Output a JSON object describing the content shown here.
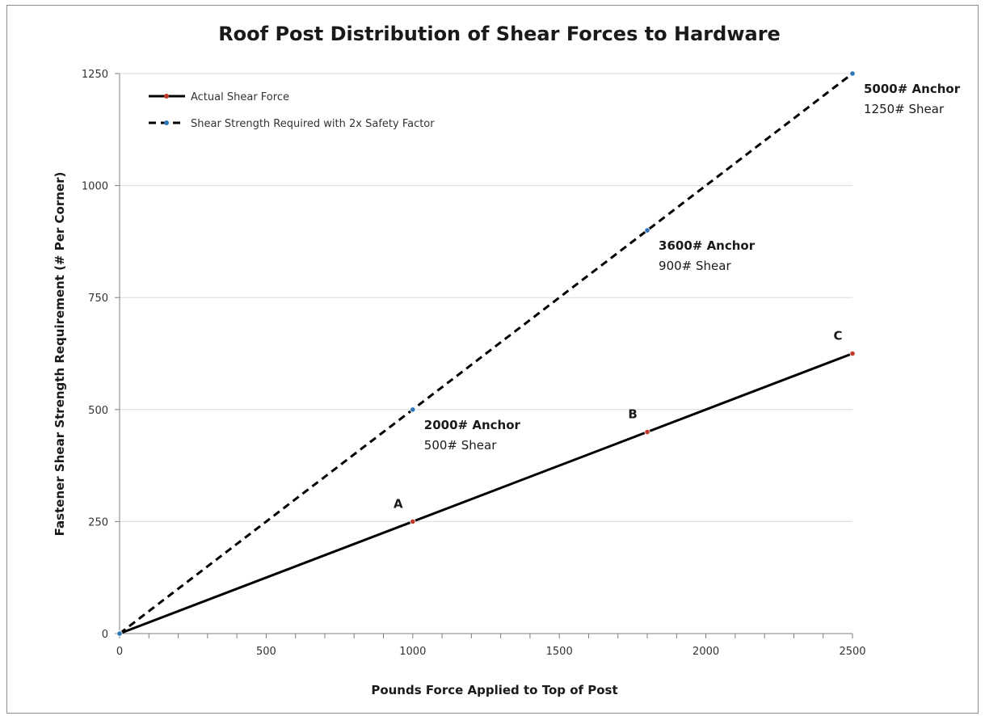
{
  "chart_data": {
    "type": "line",
    "title": "Roof Post Distribution of Shear Forces to Hardware",
    "xlabel": "Pounds Force Applied to Top of Post",
    "ylabel": "Fastener Shear Strength Requirement (# Per Corner)",
    "xlim": [
      0,
      2500
    ],
    "ylim": [
      0,
      1250
    ],
    "x_ticks": [
      "0",
      "500",
      "1000",
      "1500",
      "2000",
      "2500"
    ],
    "y_ticks": [
      "0",
      "250",
      "500",
      "750",
      "1000",
      "1250"
    ],
    "grid": "horizontal",
    "legend_position": "top-left",
    "series": [
      {
        "name": "Actual Shear Force",
        "style": "solid",
        "color": "#000000",
        "marker_color": "#c0392b",
        "points": [
          {
            "x": 0,
            "y": 0
          },
          {
            "x": 1000,
            "y": 250
          },
          {
            "x": 1800,
            "y": 450
          },
          {
            "x": 2500,
            "y": 625
          }
        ]
      },
      {
        "name": "Shear Strength Required with 2x Safety Factor",
        "style": "dashed",
        "color": "#000000",
        "marker_color": "#2e75b6",
        "points": [
          {
            "x": 0,
            "y": 0
          },
          {
            "x": 1000,
            "y": 500
          },
          {
            "x": 1800,
            "y": 900
          },
          {
            "x": 2500,
            "y": 1250
          }
        ]
      }
    ],
    "annotations": [
      {
        "bold": "2000# Anchor",
        "text": "500# Shear",
        "x": 1000,
        "y": 500
      },
      {
        "bold": "3600# Anchor",
        "text": "900# Shear",
        "x": 1800,
        "y": 900
      },
      {
        "bold": "5000# Anchor",
        "text": "1250# Shear",
        "x": 2500,
        "y": 1250
      }
    ],
    "point_labels": [
      {
        "label": "A",
        "x": 1000,
        "y": 250
      },
      {
        "label": "B",
        "x": 1800,
        "y": 450
      },
      {
        "label": "C",
        "x": 2500,
        "y": 625
      }
    ]
  }
}
